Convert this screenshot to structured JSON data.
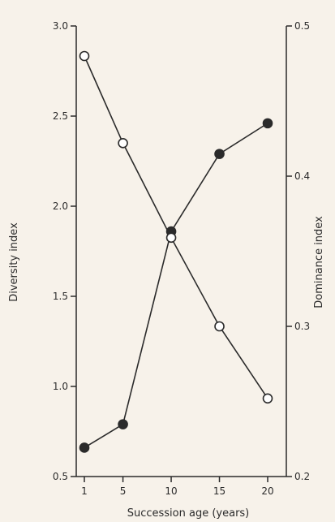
{
  "chart_data": {
    "type": "line",
    "title": "",
    "xlabel": "Succession age (years)",
    "ylabel_left": "Diversity index",
    "ylabel_right": "Dominance index",
    "x": [
      1,
      5,
      10,
      15,
      20
    ],
    "x_tick_labels": [
      "1",
      "5",
      "10",
      "15",
      "20"
    ],
    "left_axis": {
      "range": [
        0.5,
        3.0
      ],
      "tick_labels": [
        "0.5",
        "1.0",
        "1.5",
        "2.0",
        "2.5",
        "3.0"
      ]
    },
    "right_axis": {
      "range": [
        0.2,
        0.5
      ],
      "tick_labels": [
        "0.2",
        "0.3",
        "0.4",
        "0.5"
      ]
    },
    "series": [
      {
        "axis": "left",
        "marker": "filled-circle",
        "values": [
          0.66,
          0.79,
          1.86,
          2.29,
          2.46
        ]
      },
      {
        "axis": "right",
        "marker": "open-circle",
        "values": [
          0.48,
          0.422,
          0.359,
          0.3,
          0.252
        ]
      }
    ],
    "grid": false,
    "legend": "none"
  }
}
